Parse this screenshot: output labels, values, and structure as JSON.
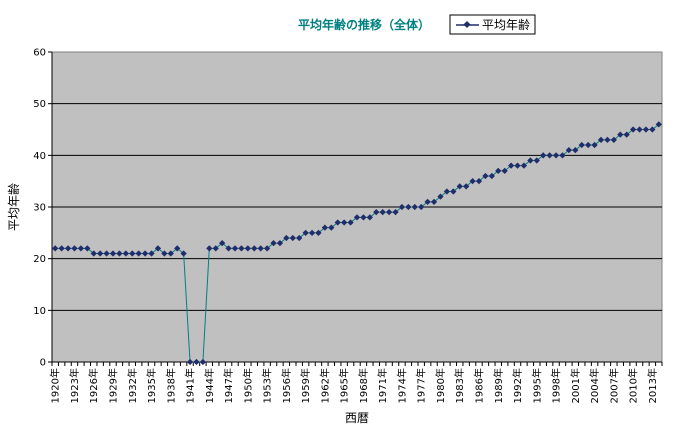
{
  "chart_data": {
    "type": "line",
    "title": "平均年齢の推移（全体）",
    "xlabel": "西暦",
    "ylabel": "平均年齢",
    "ylim": [
      0,
      60
    ],
    "yticks": [
      0,
      10,
      20,
      30,
      40,
      50,
      60
    ],
    "grid": true,
    "legend_position": "top-right",
    "x": [
      1920,
      1921,
      1922,
      1923,
      1924,
      1925,
      1926,
      1927,
      1928,
      1929,
      1930,
      1931,
      1932,
      1933,
      1934,
      1935,
      1936,
      1937,
      1938,
      1939,
      1940,
      1941,
      1942,
      1943,
      1944,
      1945,
      1946,
      1947,
      1948,
      1949,
      1950,
      1951,
      1952,
      1953,
      1954,
      1955,
      1956,
      1957,
      1958,
      1959,
      1960,
      1961,
      1962,
      1963,
      1964,
      1965,
      1966,
      1967,
      1968,
      1969,
      1970,
      1971,
      1972,
      1973,
      1974,
      1975,
      1976,
      1977,
      1978,
      1979,
      1980,
      1981,
      1982,
      1983,
      1984,
      1985,
      1986,
      1987,
      1988,
      1989,
      1990,
      1991,
      1992,
      1993,
      1994,
      1995,
      1996,
      1997,
      1998,
      1999,
      2000,
      2001,
      2002,
      2003,
      2004,
      2005,
      2006,
      2007,
      2008,
      2009,
      2010,
      2011,
      2012,
      2013,
      2014
    ],
    "xtick_labels": [
      "1920年",
      "1923年",
      "1926年",
      "1929年",
      "1932年",
      "1935年",
      "1938年",
      "1941年",
      "1944年",
      "1947年",
      "1950年",
      "1953年",
      "1956年",
      "1959年",
      "1962年",
      "1965年",
      "1968年",
      "1971年",
      "1974年",
      "1977年",
      "1980年",
      "1983年",
      "1986年",
      "1989年",
      "1992年",
      "1995年",
      "1998年",
      "2001年",
      "2004年",
      "2007年",
      "2010年",
      "2013年"
    ],
    "series": [
      {
        "name": "平均年齢",
        "color": "#1f2d6b",
        "values": [
          22,
          22,
          22,
          22,
          22,
          22,
          21,
          21,
          21,
          21,
          21,
          21,
          21,
          21,
          21,
          21,
          22,
          21,
          21,
          22,
          21,
          0,
          0,
          0,
          22,
          22,
          23,
          22,
          22,
          22,
          22,
          22,
          22,
          22,
          23,
          23,
          24,
          24,
          24,
          25,
          25,
          25,
          26,
          26,
          27,
          27,
          27,
          28,
          28,
          28,
          29,
          29,
          29,
          29,
          30,
          30,
          30,
          30,
          31,
          31,
          32,
          33,
          33,
          34,
          34,
          35,
          35,
          36,
          36,
          37,
          37,
          38,
          38,
          38,
          39,
          39,
          40,
          40,
          40,
          40,
          41,
          41,
          42,
          42,
          42,
          43,
          43,
          43,
          44,
          44,
          45,
          45,
          45,
          45,
          46
        ]
      }
    ]
  }
}
